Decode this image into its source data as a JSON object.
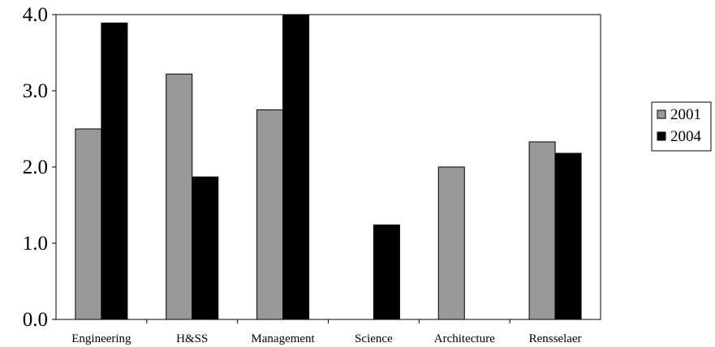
{
  "chart_data": {
    "type": "bar",
    "categories": [
      "Engineering",
      "H&SS",
      "Management",
      "Science",
      "Architecture",
      "Rensselaer"
    ],
    "series": [
      {
        "name": "2001",
        "values": [
          2.5,
          3.22,
          2.75,
          null,
          2.0,
          2.33
        ],
        "color": "#999999"
      },
      {
        "name": "2004",
        "values": [
          3.89,
          1.87,
          4.0,
          1.24,
          null,
          2.18
        ],
        "color": "#000000"
      }
    ],
    "yticks": [
      "0.0",
      "1.0",
      "2.0",
      "3.0",
      "4.0"
    ],
    "ylim": [
      0,
      4
    ],
    "grid": false,
    "legend_position": "right"
  }
}
